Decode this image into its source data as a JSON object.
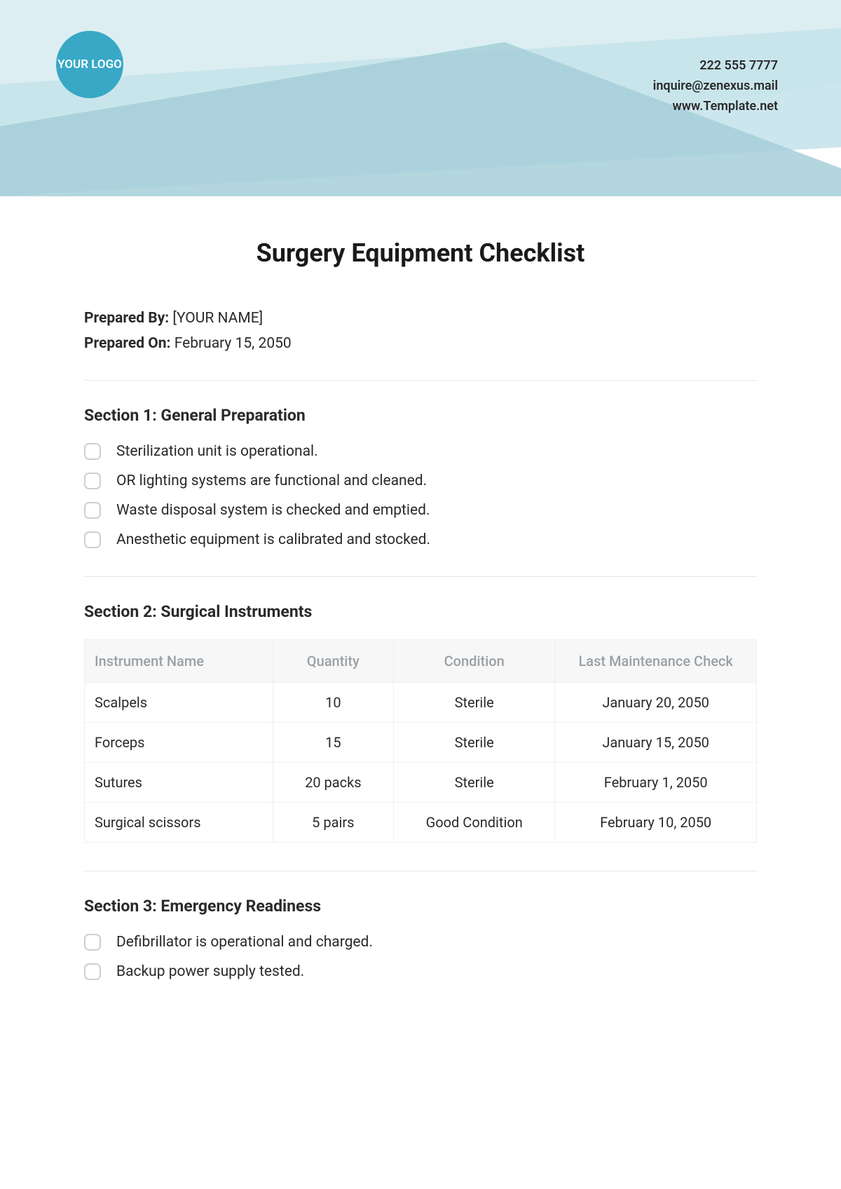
{
  "header": {
    "logo_text": "YOUR LOGO",
    "contact": {
      "phone": "222 555 7777",
      "email": "inquire@zenexus.mail",
      "website": "www.Template.net"
    },
    "band_colors": {
      "light": "#dceef2",
      "mid": "#c7e3eb",
      "dark": "#a6cfd9"
    },
    "logo_bg": "#38a8c6"
  },
  "document": {
    "title": "Surgery Equipment Checklist",
    "prepared_by_label": "Prepared By:",
    "prepared_by_value": "[YOUR NAME]",
    "prepared_on_label": "Prepared On:",
    "prepared_on_value": "February 15, 2050"
  },
  "section1": {
    "title": "Section 1: General Preparation",
    "items": [
      "Sterilization unit is operational.",
      "OR lighting systems are functional and cleaned.",
      "Waste disposal system is checked and emptied.",
      "Anesthetic equipment is calibrated and stocked."
    ]
  },
  "section2": {
    "title": "Section 2: Surgical Instruments",
    "columns": [
      "Instrument Name",
      "Quantity",
      "Condition",
      "Last Maintenance Check"
    ],
    "rows": [
      [
        "Scalpels",
        "10",
        "Sterile",
        "January 20, 2050"
      ],
      [
        "Forceps",
        "15",
        "Sterile",
        "January 15, 2050"
      ],
      [
        "Sutures",
        "20 packs",
        "Sterile",
        "February 1, 2050"
      ],
      [
        "Surgical scissors",
        "5 pairs",
        "Good Condition",
        "February 10, 2050"
      ]
    ],
    "col_widths": [
      "28%",
      "18%",
      "24%",
      "30%"
    ]
  },
  "section3": {
    "title": "Section 3: Emergency Readiness",
    "items": [
      "Defibrillator is operational and charged.",
      "Backup power supply tested."
    ]
  },
  "style": {
    "title_color": "#1a1a1a",
    "text_color": "#2a2a2a",
    "divider_color": "#e6e6e6",
    "table_header_bg": "#f7f7f7",
    "table_header_text": "#9aa0a6",
    "table_border": "#eceff1",
    "checkbox_border": "#cfcfcf"
  }
}
